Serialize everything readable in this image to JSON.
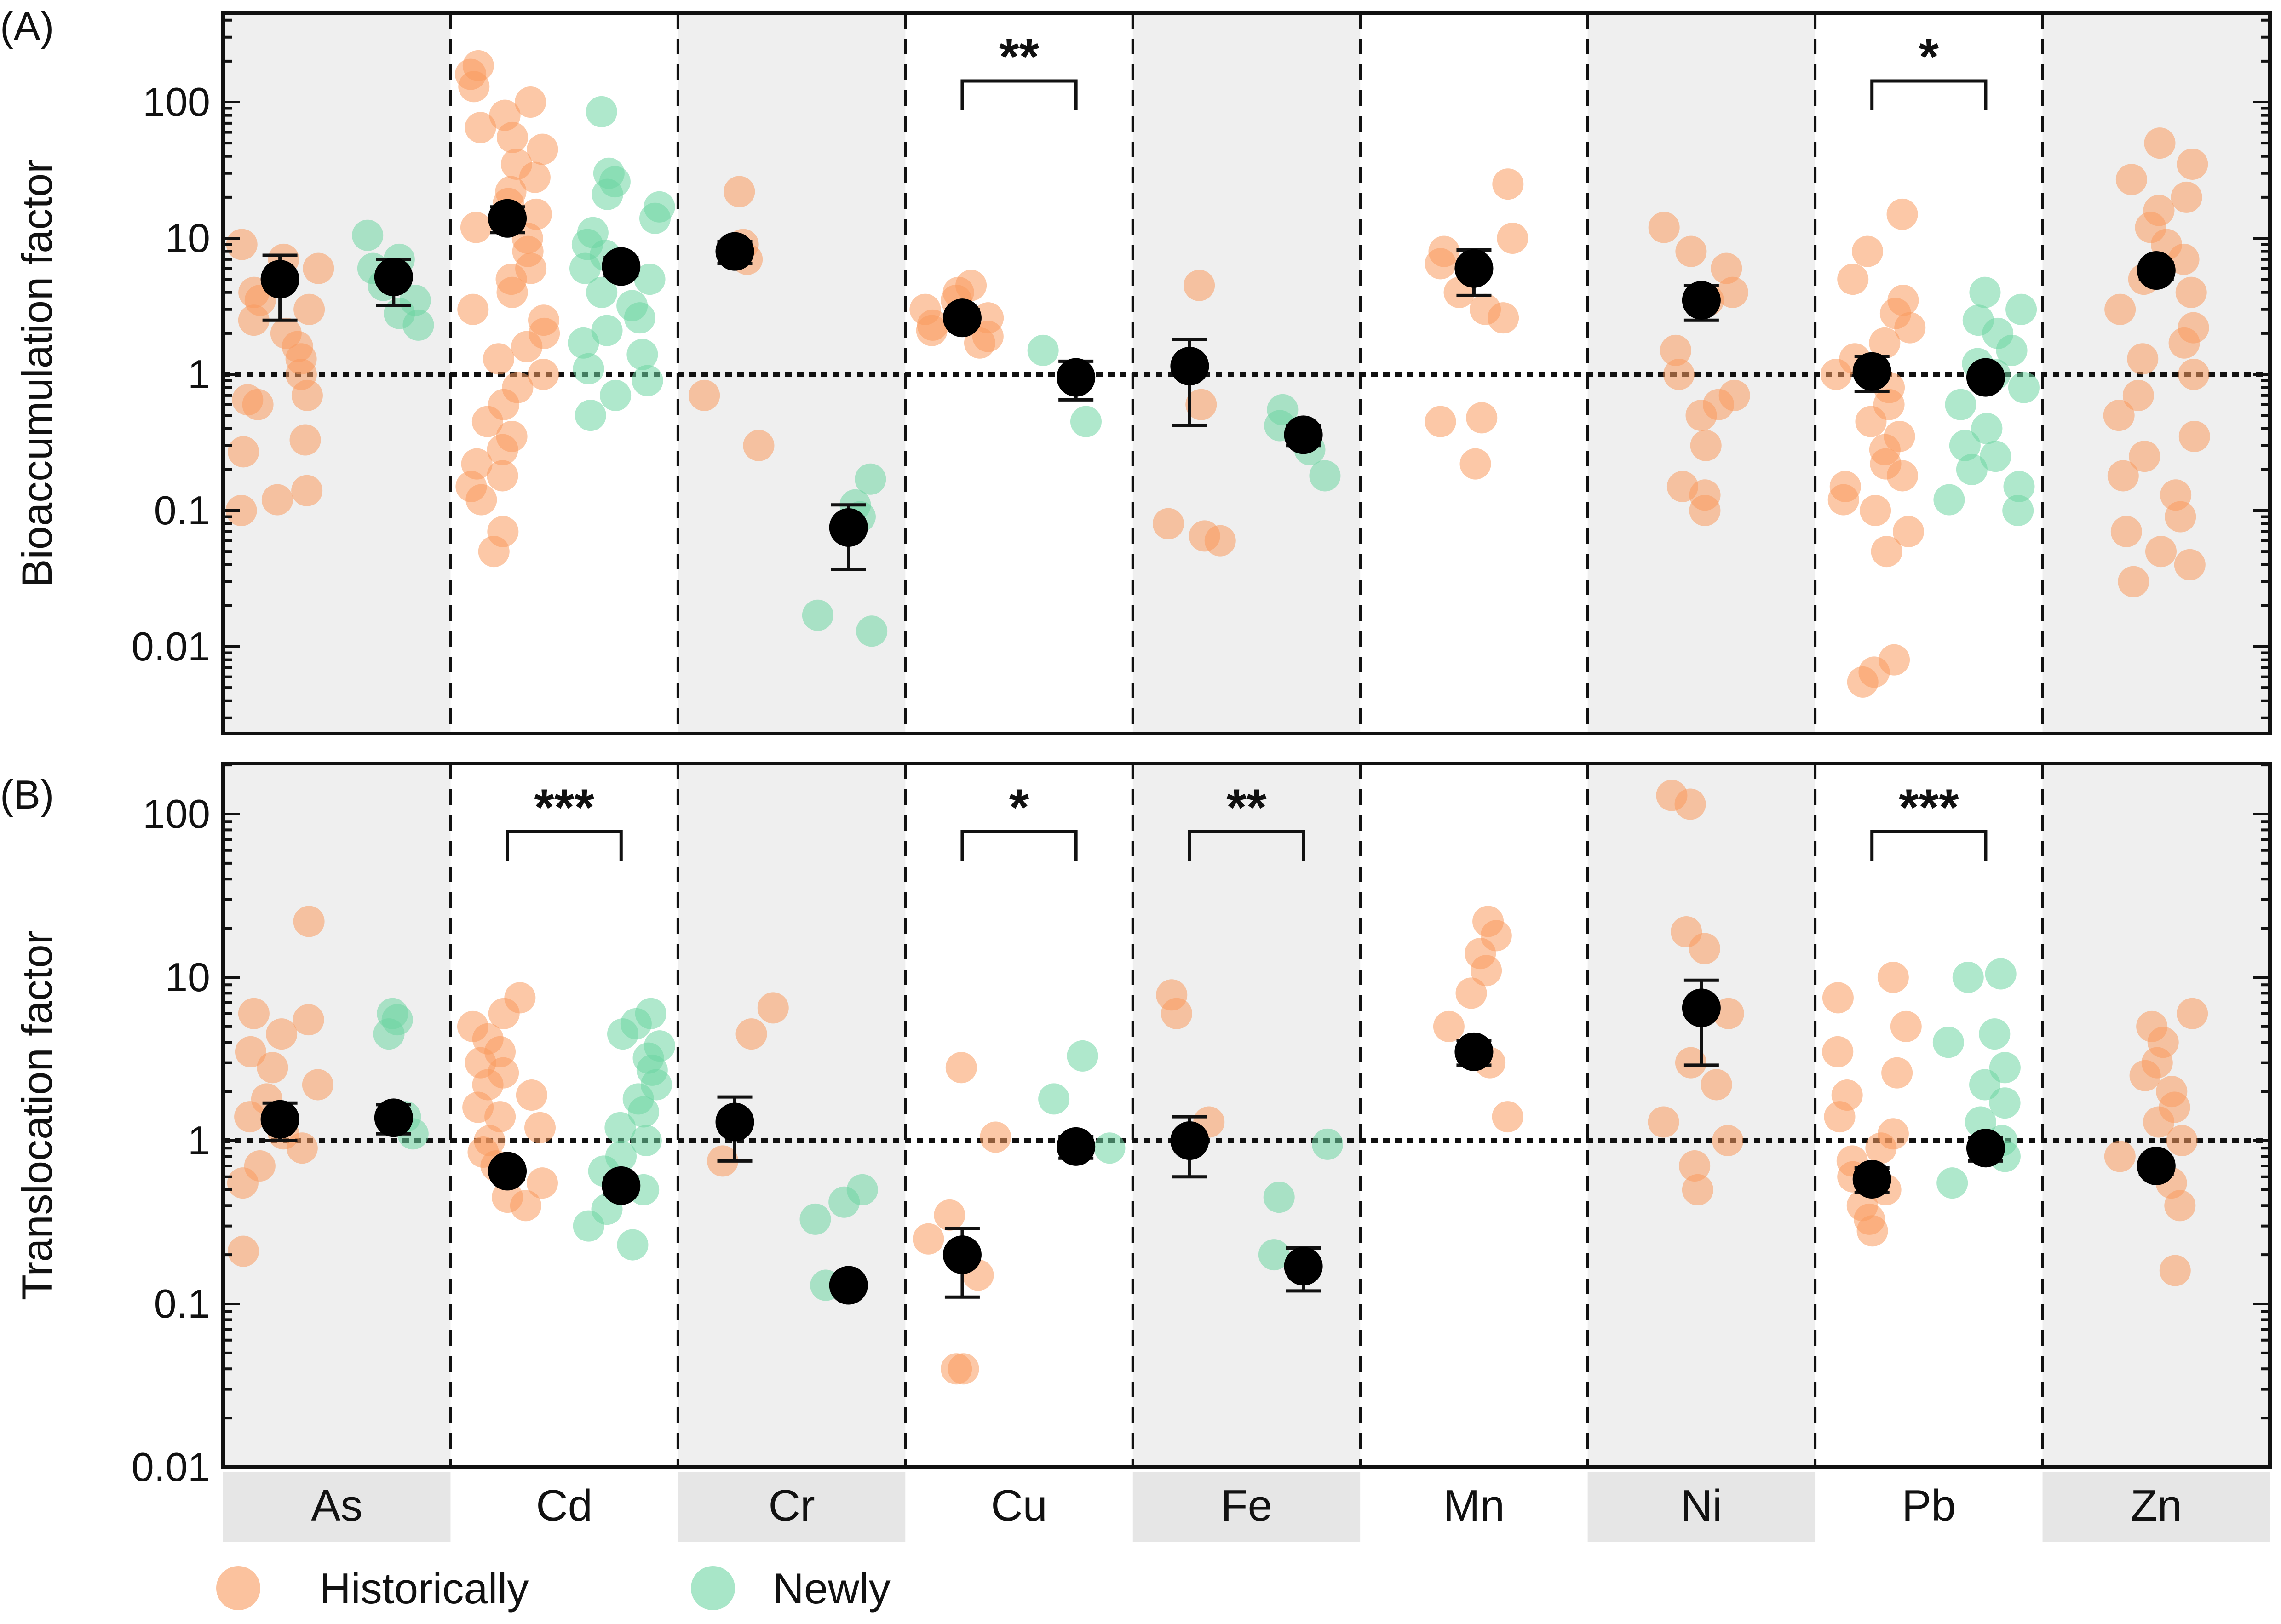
{
  "chart_data": {
    "type": "scatter",
    "elements": [
      "As",
      "Cd",
      "Cr",
      "Cu",
      "Fe",
      "Mn",
      "Ni",
      "Pb",
      "Zn"
    ],
    "legend": {
      "placement": "bottom",
      "entries": [
        {
          "name": "Historically",
          "color": "#f99a5e"
        },
        {
          "name": "Newly",
          "color": "#6ed6a3"
        }
      ]
    },
    "reference_line": 1,
    "panels": [
      {
        "label": "(A)",
        "ylabel": "Bioaccumulation factor",
        "yscale": "log",
        "ylim": [
          0.002,
          500
        ],
        "yticks": [
          0.01,
          0.1,
          1,
          10,
          100
        ],
        "ytick_labels": [
          "0.01",
          "0.1",
          "1",
          "10",
          "100"
        ],
        "groups": [
          {
            "element": "As",
            "historically": {
              "mean": 5,
              "err": [
                2.5,
                7.5
              ],
              "points": [
                0.1,
                0.12,
                0.14,
                0.27,
                0.33,
                0.6,
                0.65,
                0.7,
                1.0,
                1.3,
                1.6,
                2.0,
                2.5,
                3.0,
                3.5,
                4.0,
                5.0,
                6.0,
                7.0,
                9.0
              ]
            },
            "newly": {
              "mean": 5.2,
              "err": [
                3.2,
                7.0
              ],
              "points": [
                2.3,
                2.8,
                3.5,
                4.5,
                6.0,
                7.0,
                10.5
              ]
            }
          },
          {
            "element": "Cd",
            "historically": {
              "mean": 14,
              "err": [
                11,
                17
              ],
              "points": [
                0.05,
                0.07,
                0.12,
                0.15,
                0.18,
                0.22,
                0.28,
                0.35,
                0.45,
                0.6,
                0.8,
                1.0,
                1.3,
                1.6,
                2.0,
                2.5,
                3.0,
                4.0,
                5.0,
                6.0,
                8.0,
                10,
                12,
                15,
                18,
                22,
                28,
                35,
                45,
                55,
                65,
                80,
                100,
                130,
                160,
                185
              ]
            },
            "newly": {
              "mean": 6.2,
              "err": [
                5.3,
                7.2
              ],
              "points": [
                0.5,
                0.7,
                0.9,
                1.1,
                1.4,
                1.7,
                2.1,
                2.6,
                3.2,
                4.0,
                5.0,
                6.0,
                7.5,
                9.0,
                11,
                14,
                17,
                21,
                26,
                30,
                85
              ]
            }
          },
          {
            "element": "Cr",
            "historically": {
              "mean": 8,
              "err": [
                6.5,
                9.5
              ],
              "points": [
                0.3,
                0.7,
                7.0,
                9.0,
                22
              ]
            },
            "newly": {
              "mean": 0.075,
              "err": [
                0.037,
                0.11
              ],
              "points": [
                0.013,
                0.017,
                0.09,
                0.11,
                0.17
              ]
            }
          },
          {
            "element": "Cu",
            "historically": {
              "mean": 2.6,
              "err": [
                2.3,
                3.0
              ],
              "points": [
                1.7,
                1.9,
                2.1,
                2.3,
                2.6,
                3.0,
                3.5,
                4.0,
                4.5
              ]
            },
            "newly": {
              "mean": 0.95,
              "err": [
                0.65,
                1.25
              ],
              "points": [
                0.45,
                1.5
              ]
            }
          },
          {
            "element": "Fe",
            "historically": {
              "mean": 1.15,
              "err": [
                0.42,
                1.8
              ],
              "points": [
                0.06,
                0.065,
                0.08,
                0.6,
                4.5
              ]
            },
            "newly": {
              "mean": 0.36,
              "err": [
                0.3,
                0.42
              ],
              "points": [
                0.18,
                0.28,
                0.35,
                0.42,
                0.55
              ]
            }
          },
          {
            "element": "Mn",
            "historically": {
              "mean": 6,
              "err": [
                3.8,
                8.2
              ],
              "points": [
                0.22,
                0.45,
                0.48,
                2.6,
                3.0,
                4.0,
                6.5,
                8.0,
                10,
                25
              ]
            },
            "newly": null
          },
          {
            "element": "Ni",
            "historically": {
              "mean": 3.5,
              "err": [
                2.5,
                4.5
              ],
              "points": [
                0.1,
                0.13,
                0.15,
                0.3,
                0.5,
                0.6,
                0.7,
                1.0,
                1.5,
                3.5,
                4.0,
                6.0,
                8.0,
                12
              ]
            },
            "newly": null
          },
          {
            "element": "Pb",
            "historically": {
              "mean": 1.05,
              "err": [
                0.75,
                1.35
              ],
              "points": [
                0.0055,
                0.0065,
                0.008,
                0.05,
                0.07,
                0.1,
                0.12,
                0.15,
                0.18,
                0.22,
                0.28,
                0.35,
                0.45,
                0.6,
                0.8,
                1.0,
                1.3,
                1.7,
                2.2,
                2.8,
                3.5,
                5.0,
                8.0,
                15
              ]
            },
            "newly": {
              "mean": 0.95,
              "err": [
                0.85,
                1.05
              ],
              "points": [
                0.1,
                0.12,
                0.15,
                0.2,
                0.25,
                0.3,
                0.4,
                0.6,
                0.8,
                1.0,
                1.2,
                1.5,
                2.0,
                2.5,
                3.0,
                4.0
              ]
            }
          },
          {
            "element": "Zn",
            "historically": {
              "mean": 5.8,
              "err": [
                5.0,
                6.6
              ],
              "points": [
                0.03,
                0.04,
                0.05,
                0.07,
                0.09,
                0.13,
                0.18,
                0.25,
                0.35,
                0.5,
                0.7,
                1.0,
                1.3,
                1.7,
                2.2,
                3.0,
                4.0,
                5.0,
                7.0,
                9.0,
                12,
                16,
                20,
                27,
                35,
                50
              ]
            },
            "newly": null
          }
        ],
        "significance": [
          {
            "element": "Cu",
            "label": "**"
          },
          {
            "element": "Pb",
            "label": "*"
          }
        ]
      },
      {
        "label": "(B)",
        "ylabel": "Translocation factor",
        "yscale": "log",
        "ylim": [
          0.01,
          250
        ],
        "yticks": [
          0.01,
          0.1,
          1,
          10,
          100
        ],
        "ytick_labels": [
          "0.01",
          "0.1",
          "1",
          "10",
          "100"
        ],
        "groups": [
          {
            "element": "As",
            "historically": {
              "mean": 1.35,
              "err": [
                1.0,
                1.7
              ],
              "points": [
                0.21,
                0.55,
                0.7,
                0.9,
                1.1,
                1.4,
                1.8,
                2.2,
                2.8,
                3.5,
                4.5,
                5.5,
                6.0,
                22
              ]
            },
            "newly": {
              "mean": 1.38,
              "err": [
                1.1,
                1.66
              ],
              "points": [
                1.1,
                1.4,
                4.5,
                5.5,
                6.0
              ]
            }
          },
          {
            "element": "Cd",
            "historically": {
              "mean": 0.65,
              "err": [
                0.58,
                0.72
              ],
              "points": [
                0.4,
                0.45,
                0.55,
                0.7,
                0.85,
                1.0,
                1.2,
                1.4,
                1.6,
                1.9,
                2.2,
                2.6,
                3.0,
                3.5,
                4.2,
                5.0,
                6.0,
                7.5
              ]
            },
            "newly": {
              "mean": 0.53,
              "err": [
                0.47,
                0.59
              ],
              "points": [
                0.23,
                0.3,
                0.38,
                0.5,
                0.65,
                0.8,
                1.0,
                1.2,
                1.5,
                1.8,
                2.2,
                2.7,
                3.2,
                3.8,
                4.5,
                5.2,
                6.0
              ]
            }
          },
          {
            "element": "Cr",
            "historically": {
              "mean": 1.3,
              "err": [
                0.75,
                1.85
              ],
              "points": [
                0.75,
                4.5,
                6.5
              ]
            },
            "newly": {
              "mean": 0.13,
              "err": [
                0.12,
                0.14
              ],
              "points": [
                0.13,
                0.33,
                0.42,
                0.5
              ]
            }
          },
          {
            "element": "Cu",
            "historically": {
              "mean": 0.2,
              "err": [
                0.11,
                0.29
              ],
              "points": [
                0.04,
                0.04,
                0.15,
                0.25,
                0.35,
                1.05,
                2.8
              ]
            },
            "newly": {
              "mean": 0.92,
              "err": [
                0.78,
                1.06
              ],
              "points": [
                0.9,
                1.8,
                3.3
              ]
            }
          },
          {
            "element": "Fe",
            "historically": {
              "mean": 1.0,
              "err": [
                0.6,
                1.4
              ],
              "points": [
                1.3,
                6.0,
                7.8
              ]
            },
            "newly": {
              "mean": 0.17,
              "err": [
                0.12,
                0.22
              ],
              "points": [
                0.2,
                0.45,
                0.95
              ]
            }
          },
          {
            "element": "Mn",
            "historically": {
              "mean": 3.5,
              "err": [
                2.9,
                4.1
              ],
              "points": [
                1.4,
                3.0,
                5.0,
                8.0,
                11,
                14,
                18,
                22
              ]
            },
            "newly": null
          },
          {
            "element": "Ni",
            "historically": {
              "mean": 6.5,
              "err": [
                2.9,
                9.6
              ],
              "points": [
                0.5,
                0.7,
                1.0,
                1.3,
                2.2,
                3.0,
                6.0,
                15,
                19,
                115,
                130
              ]
            },
            "newly": null
          },
          {
            "element": "Pb",
            "historically": {
              "mean": 0.58,
              "err": [
                0.48,
                0.68
              ],
              "points": [
                0.28,
                0.33,
                0.4,
                0.5,
                0.6,
                0.75,
                0.9,
                1.1,
                1.4,
                1.9,
                2.6,
                3.5,
                5.0,
                7.5,
                10
              ]
            },
            "newly": {
              "mean": 0.9,
              "err": [
                0.75,
                1.05
              ],
              "points": [
                0.55,
                0.8,
                1.0,
                1.3,
                1.7,
                2.2,
                2.8,
                4.0,
                4.5,
                10,
                10.5
              ]
            }
          },
          {
            "element": "Zn",
            "historically": {
              "mean": 0.7,
              "err": [
                0.62,
                0.78
              ],
              "points": [
                0.16,
                0.4,
                0.55,
                0.8,
                1.0,
                1.3,
                1.6,
                2.0,
                2.5,
                3.0,
                4.0,
                5.0,
                6.0
              ]
            },
            "newly": null
          }
        ],
        "significance": [
          {
            "element": "Cd",
            "label": "***"
          },
          {
            "element": "Cu",
            "label": "*"
          },
          {
            "element": "Fe",
            "label": "**"
          },
          {
            "element": "Pb",
            "label": "***"
          }
        ]
      }
    ]
  }
}
